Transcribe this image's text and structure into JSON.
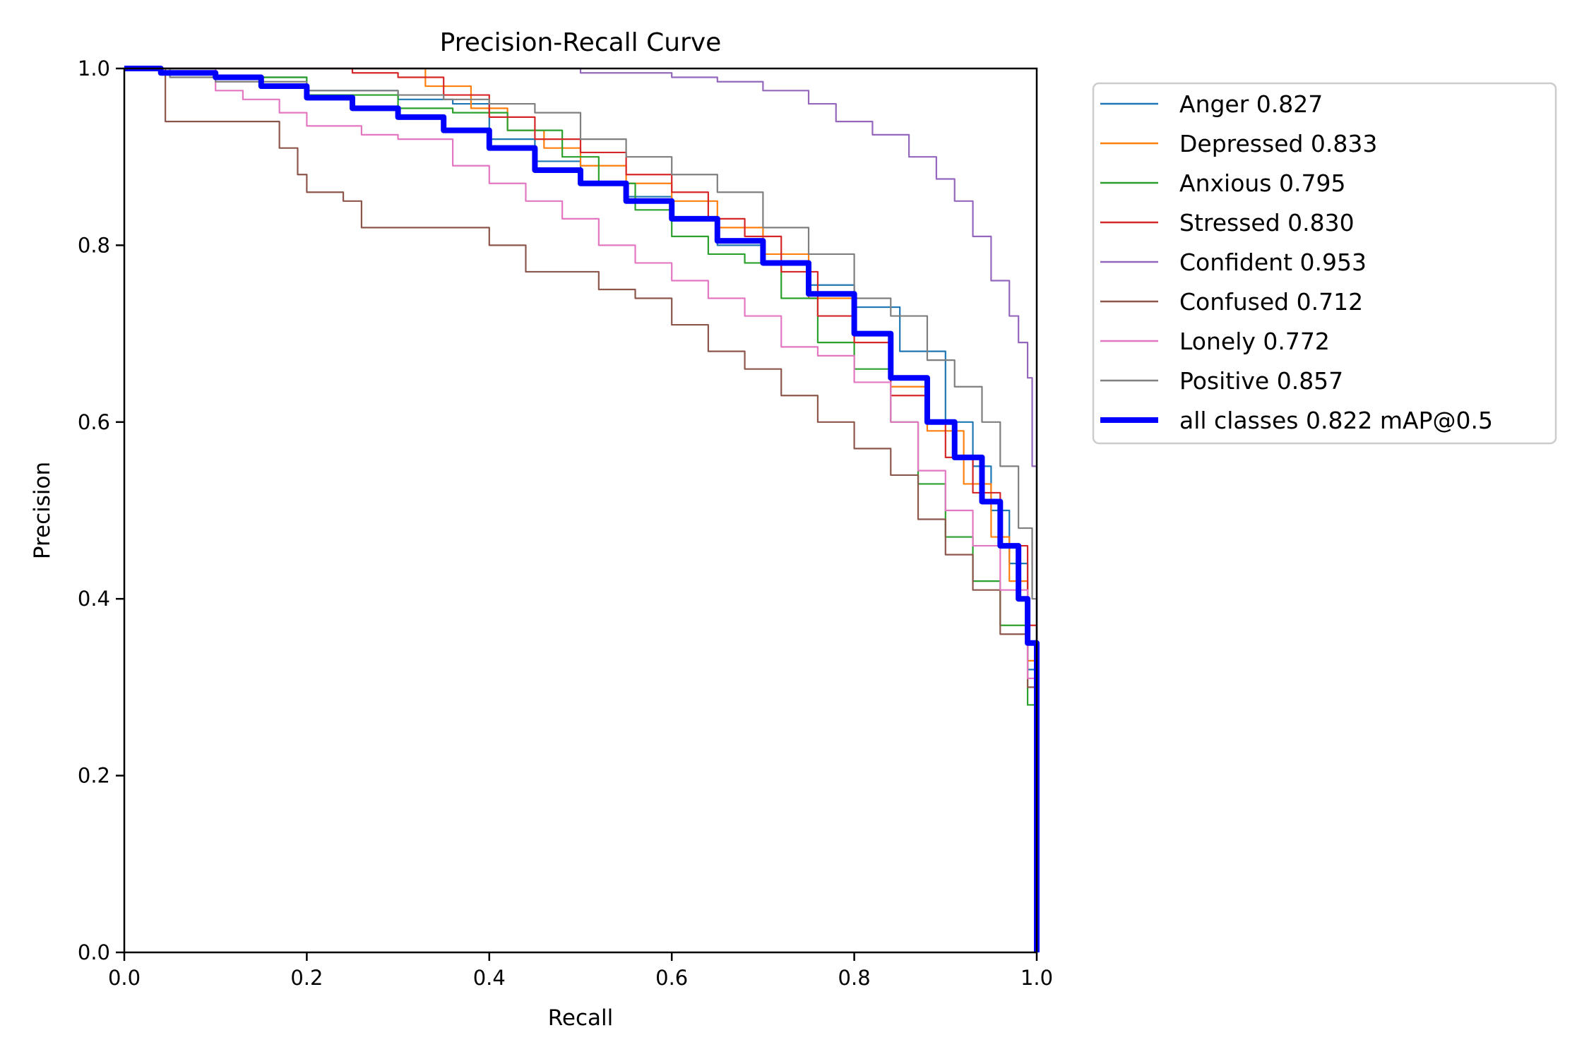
{
  "chart_data": {
    "type": "line",
    "title": "Precision-Recall Curve",
    "xlabel": "Recall",
    "ylabel": "Precision",
    "xlim": [
      0.0,
      1.0
    ],
    "ylim": [
      0.0,
      1.0
    ],
    "xticks": [
      "0.0",
      "0.2",
      "0.4",
      "0.6",
      "0.8",
      "1.0"
    ],
    "yticks": [
      "0.0",
      "0.2",
      "0.4",
      "0.6",
      "0.8",
      "1.0"
    ],
    "grid": false,
    "legend_position": "outside-right-top",
    "series": [
      {
        "name": "Anger",
        "label": "Anger 0.827",
        "ap": 0.827,
        "color": "#1f77b4",
        "width": "thin",
        "x": [
          0,
          0.04,
          0.1,
          0.2,
          0.3,
          0.36,
          0.4,
          0.45,
          0.5,
          0.55,
          0.6,
          0.65,
          0.7,
          0.75,
          0.8,
          0.85,
          0.9,
          0.93,
          0.95,
          0.97,
          0.99,
          1.0,
          1.0
        ],
        "y": [
          1,
          1,
          0.99,
          0.975,
          0.965,
          0.96,
          0.92,
          0.895,
          0.87,
          0.855,
          0.83,
          0.8,
          0.78,
          0.755,
          0.73,
          0.68,
          0.6,
          0.55,
          0.5,
          0.44,
          0.32,
          0.25,
          0.0
        ]
      },
      {
        "name": "Depressed",
        "label": "Depressed 0.833",
        "ap": 0.833,
        "color": "#ff7f0e",
        "width": "thin",
        "x": [
          0,
          0.15,
          0.27,
          0.33,
          0.38,
          0.42,
          0.46,
          0.5,
          0.55,
          0.6,
          0.65,
          0.7,
          0.75,
          0.8,
          0.84,
          0.88,
          0.92,
          0.95,
          0.97,
          0.99,
          1.0,
          1.0
        ],
        "y": [
          1,
          1,
          1,
          0.98,
          0.955,
          0.93,
          0.91,
          0.89,
          0.87,
          0.85,
          0.82,
          0.79,
          0.74,
          0.7,
          0.64,
          0.59,
          0.53,
          0.47,
          0.42,
          0.33,
          0.26,
          0.0
        ]
      },
      {
        "name": "Anxious",
        "label": "Anxious 0.795",
        "ap": 0.795,
        "color": "#2ca02c",
        "width": "thin",
        "x": [
          0,
          0.1,
          0.2,
          0.3,
          0.36,
          0.42,
          0.48,
          0.52,
          0.56,
          0.6,
          0.64,
          0.68,
          0.72,
          0.76,
          0.8,
          0.84,
          0.87,
          0.9,
          0.93,
          0.96,
          0.99,
          1.0,
          1.0
        ],
        "y": [
          1,
          0.99,
          0.97,
          0.955,
          0.95,
          0.93,
          0.9,
          0.87,
          0.84,
          0.81,
          0.79,
          0.78,
          0.74,
          0.69,
          0.66,
          0.6,
          0.53,
          0.47,
          0.42,
          0.37,
          0.28,
          0.25,
          0.0
        ]
      },
      {
        "name": "Stressed",
        "label": "Stressed 0.830",
        "ap": 0.83,
        "color": "#d62728",
        "width": "thin",
        "x": [
          0,
          0.12,
          0.25,
          0.3,
          0.35,
          0.4,
          0.45,
          0.5,
          0.55,
          0.6,
          0.64,
          0.68,
          0.72,
          0.76,
          0.8,
          0.84,
          0.88,
          0.9,
          0.93,
          0.96,
          0.99,
          1.0,
          1.0
        ],
        "y": [
          1,
          1,
          0.995,
          0.99,
          0.97,
          0.945,
          0.92,
          0.905,
          0.88,
          0.86,
          0.83,
          0.81,
          0.77,
          0.72,
          0.69,
          0.63,
          0.6,
          0.56,
          0.52,
          0.46,
          0.37,
          0.3,
          0.0
        ]
      },
      {
        "name": "Confident",
        "label": "Confident 0.953",
        "ap": 0.953,
        "color": "#9467bd",
        "width": "thin",
        "x": [
          0,
          0.42,
          0.5,
          0.6,
          0.65,
          0.7,
          0.75,
          0.78,
          0.82,
          0.86,
          0.89,
          0.91,
          0.93,
          0.95,
          0.97,
          0.98,
          0.99,
          0.995,
          1.0,
          1.0
        ],
        "y": [
          1,
          1,
          0.995,
          0.99,
          0.985,
          0.975,
          0.96,
          0.94,
          0.925,
          0.9,
          0.875,
          0.85,
          0.81,
          0.76,
          0.72,
          0.69,
          0.65,
          0.55,
          0.4,
          0.0
        ]
      },
      {
        "name": "Confused",
        "label": "Confused 0.712",
        "ap": 0.712,
        "color": "#8c564b",
        "width": "thin",
        "x": [
          0,
          0.04,
          0.045,
          0.15,
          0.17,
          0.19,
          0.2,
          0.24,
          0.26,
          0.3,
          0.36,
          0.4,
          0.44,
          0.48,
          0.52,
          0.56,
          0.6,
          0.64,
          0.68,
          0.72,
          0.76,
          0.8,
          0.84,
          0.87,
          0.9,
          0.93,
          0.96,
          0.99,
          1.0,
          1.0
        ],
        "y": [
          1,
          1,
          0.94,
          0.94,
          0.91,
          0.88,
          0.86,
          0.85,
          0.82,
          0.82,
          0.82,
          0.8,
          0.77,
          0.77,
          0.75,
          0.74,
          0.71,
          0.68,
          0.66,
          0.63,
          0.6,
          0.57,
          0.54,
          0.49,
          0.45,
          0.41,
          0.36,
          0.3,
          0.25,
          0.0
        ]
      },
      {
        "name": "Lonely",
        "label": "Lonely 0.772",
        "ap": 0.772,
        "color": "#e377c2",
        "width": "thin",
        "x": [
          0,
          0.08,
          0.1,
          0.13,
          0.17,
          0.2,
          0.26,
          0.3,
          0.36,
          0.4,
          0.44,
          0.48,
          0.52,
          0.56,
          0.6,
          0.64,
          0.68,
          0.72,
          0.76,
          0.8,
          0.84,
          0.87,
          0.9,
          0.93,
          0.96,
          0.99,
          1.0,
          1.0
        ],
        "y": [
          1,
          1,
          0.975,
          0.965,
          0.95,
          0.935,
          0.925,
          0.92,
          0.89,
          0.87,
          0.85,
          0.83,
          0.8,
          0.78,
          0.76,
          0.74,
          0.72,
          0.685,
          0.675,
          0.645,
          0.6,
          0.545,
          0.5,
          0.46,
          0.41,
          0.31,
          0.23,
          0.0
        ]
      },
      {
        "name": "Positive",
        "label": "Positive 0.857",
        "ap": 0.857,
        "color": "#7f7f7f",
        "width": "thin",
        "x": [
          0,
          0.05,
          0.1,
          0.2,
          0.3,
          0.35,
          0.4,
          0.45,
          0.5,
          0.55,
          0.6,
          0.65,
          0.7,
          0.75,
          0.8,
          0.84,
          0.88,
          0.91,
          0.94,
          0.96,
          0.98,
          0.995,
          1.0,
          1.0
        ],
        "y": [
          1,
          0.99,
          0.985,
          0.975,
          0.97,
          0.965,
          0.96,
          0.95,
          0.92,
          0.9,
          0.88,
          0.86,
          0.82,
          0.79,
          0.74,
          0.72,
          0.67,
          0.64,
          0.6,
          0.55,
          0.48,
          0.4,
          0.3,
          0.0
        ]
      },
      {
        "name": "all classes",
        "label": "all classes 0.822 mAP@0.5",
        "ap": 0.822,
        "color": "#0000ff",
        "width": "thick",
        "x": [
          0,
          0.04,
          0.1,
          0.15,
          0.2,
          0.25,
          0.3,
          0.35,
          0.4,
          0.45,
          0.5,
          0.55,
          0.6,
          0.65,
          0.7,
          0.75,
          0.8,
          0.84,
          0.88,
          0.91,
          0.94,
          0.96,
          0.98,
          0.99,
          1.0,
          1.0
        ],
        "y": [
          1,
          0.995,
          0.99,
          0.98,
          0.967,
          0.955,
          0.945,
          0.93,
          0.91,
          0.885,
          0.87,
          0.85,
          0.83,
          0.805,
          0.78,
          0.745,
          0.7,
          0.65,
          0.6,
          0.56,
          0.51,
          0.46,
          0.4,
          0.35,
          0.28,
          0.0
        ]
      }
    ]
  }
}
